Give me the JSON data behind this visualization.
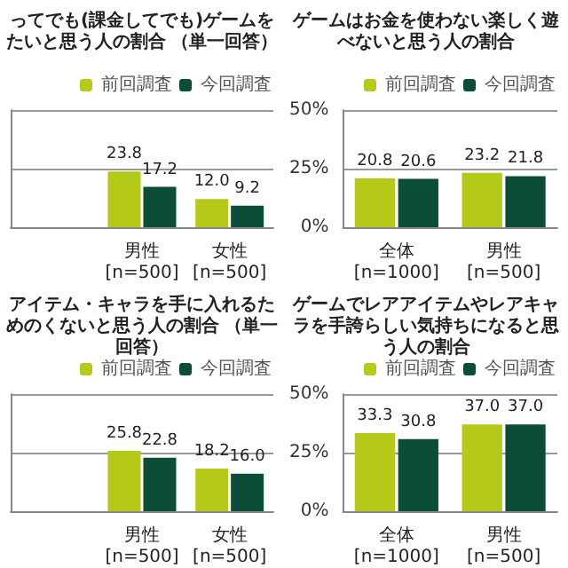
{
  "chart_data": [
    {
      "type": "bar",
      "title": "ってでも(課金してでも)ゲームをたいと思う人の割合 （単一回答）",
      "categories": [
        null,
        "男性\n[n=500]",
        "女性\n[n=500]"
      ],
      "series": [
        {
          "name": "前回調査",
          "color": "#b5c918",
          "values": [
            null,
            23.8,
            12.0
          ],
          "value_labels": [
            null,
            "23.8",
            "12.0"
          ]
        },
        {
          "name": "今回調査",
          "color": "#0b4d36",
          "values": [
            null,
            17.2,
            9.2
          ],
          "value_labels": [
            null,
            "17.2",
            "9.2"
          ]
        }
      ],
      "ylim": [
        0,
        50
      ],
      "yticks": [
        0,
        25,
        50
      ],
      "tick_labels": "x",
      "grid": "y",
      "legend": "top right"
    },
    {
      "type": "bar",
      "title": "ゲームはお金を使わない楽しく遊べないと思う人の割合",
      "categories": [
        "全体\n[n=1000]",
        "男性\n[n=500]"
      ],
      "series": [
        {
          "name": "前回調査",
          "color": "#b5c918",
          "values": [
            20.8,
            23.2
          ],
          "value_labels": [
            "20.8",
            "23.2"
          ]
        },
        {
          "name": "今回調査",
          "color": "#0b4d36",
          "values": [
            20.6,
            21.8
          ],
          "value_labels": [
            "20.6",
            "21.8"
          ]
        }
      ],
      "ylim": [
        0,
        50
      ],
      "yticks": [
        {
          "value": 0,
          "label": "0%"
        },
        {
          "value": 25,
          "label": "25%"
        },
        {
          "value": 50,
          "label": "50%"
        }
      ],
      "grid": "y",
      "legend": "top right"
    },
    {
      "type": "bar",
      "title": "アイテム・キャラを手に入れるためのくないと思う人の割合 （単一回答）",
      "categories": [
        null,
        "男性\n[n=500]",
        "女性\n[n=500]"
      ],
      "series": [
        {
          "name": "前回調査",
          "color": "#b5c918",
          "values": [
            null,
            25.8,
            18.2
          ],
          "value_labels": [
            null,
            "25.8",
            "18.2"
          ]
        },
        {
          "name": "今回調査",
          "color": "#0b4d36",
          "values": [
            null,
            22.8,
            16.0
          ],
          "value_labels": [
            null,
            "22.8",
            "16.0"
          ]
        }
      ],
      "ylim": [
        0,
        50
      ],
      "yticks": [
        0,
        25,
        50
      ],
      "tick_labels": "x",
      "grid": "y",
      "legend": "top right"
    },
    {
      "type": "bar",
      "title": "ゲームでレアアイテムやレアキャラを手誇らしい気持ちになると思う人の割合",
      "categories": [
        "全体\n[n=1000]",
        "男性\n[n=500]"
      ],
      "series": [
        {
          "name": "前回調査",
          "color": "#b5c918",
          "values": [
            33.3,
            37.0
          ],
          "value_labels": [
            "33.3",
            "37.0"
          ]
        },
        {
          "name": "今回調査",
          "color": "#0b4d36",
          "values": [
            30.8,
            37.0
          ],
          "value_labels": [
            "30.8",
            "37.0"
          ]
        }
      ],
      "ylim": [
        0,
        50
      ],
      "yticks": [
        {
          "value": 0,
          "label": "0%"
        },
        {
          "value": 25,
          "label": "25%"
        },
        {
          "value": 50,
          "label": "50%"
        }
      ],
      "grid": "y",
      "legend": "top right"
    }
  ]
}
